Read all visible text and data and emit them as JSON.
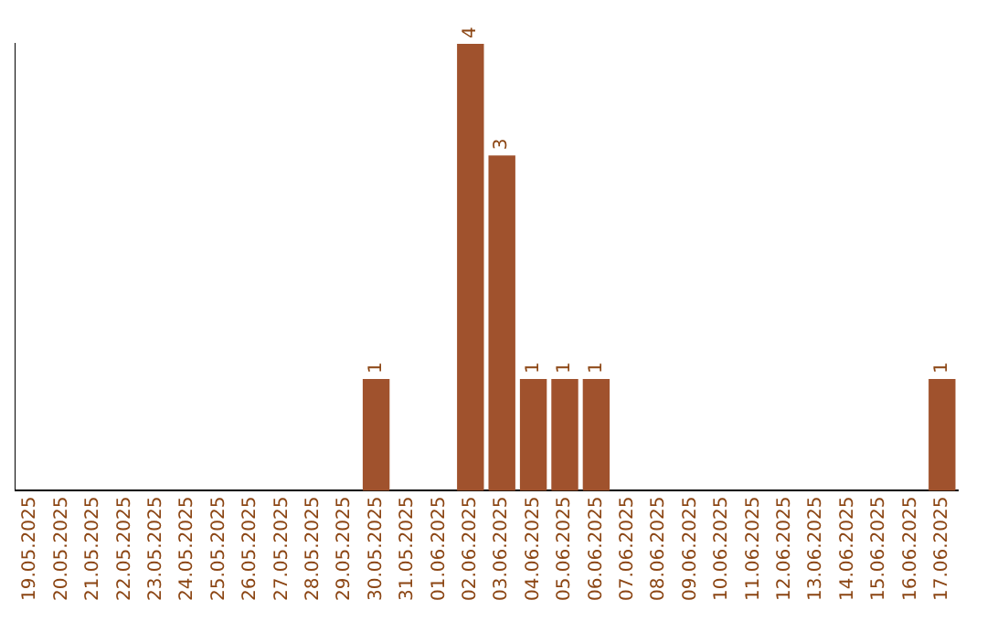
{
  "chart_data": {
    "type": "bar",
    "categories": [
      "19.05.2025",
      "20.05.2025",
      "21.05.2025",
      "22.05.2025",
      "23.05.2025",
      "24.05.2025",
      "25.05.2025",
      "26.05.2025",
      "27.05.2025",
      "28.05.2025",
      "29.05.2025",
      "30.05.2025",
      "31.05.2025",
      "01.06.2025",
      "02.06.2025",
      "03.06.2025",
      "04.06.2025",
      "05.06.2025",
      "06.06.2025",
      "07.06.2025",
      "08.06.2025",
      "09.06.2025",
      "10.06.2025",
      "11.06.2025",
      "12.06.2025",
      "13.06.2025",
      "14.06.2025",
      "15.06.2025",
      "16.06.2025",
      "17.06.2025"
    ],
    "values": [
      0,
      0,
      0,
      0,
      0,
      0,
      0,
      0,
      0,
      0,
      0,
      1,
      0,
      0,
      4,
      3,
      1,
      1,
      1,
      0,
      0,
      0,
      0,
      0,
      0,
      0,
      0,
      0,
      0,
      1
    ],
    "value_labels": [
      null,
      null,
      null,
      null,
      null,
      null,
      null,
      null,
      null,
      null,
      null,
      "1",
      null,
      null,
      "4",
      "3",
      "1",
      "1",
      "1",
      null,
      null,
      null,
      null,
      null,
      null,
      null,
      null,
      null,
      null,
      "1"
    ],
    "color": "#a0522d",
    "grid": false,
    "legend": false,
    "tick_labels": "x"
  }
}
